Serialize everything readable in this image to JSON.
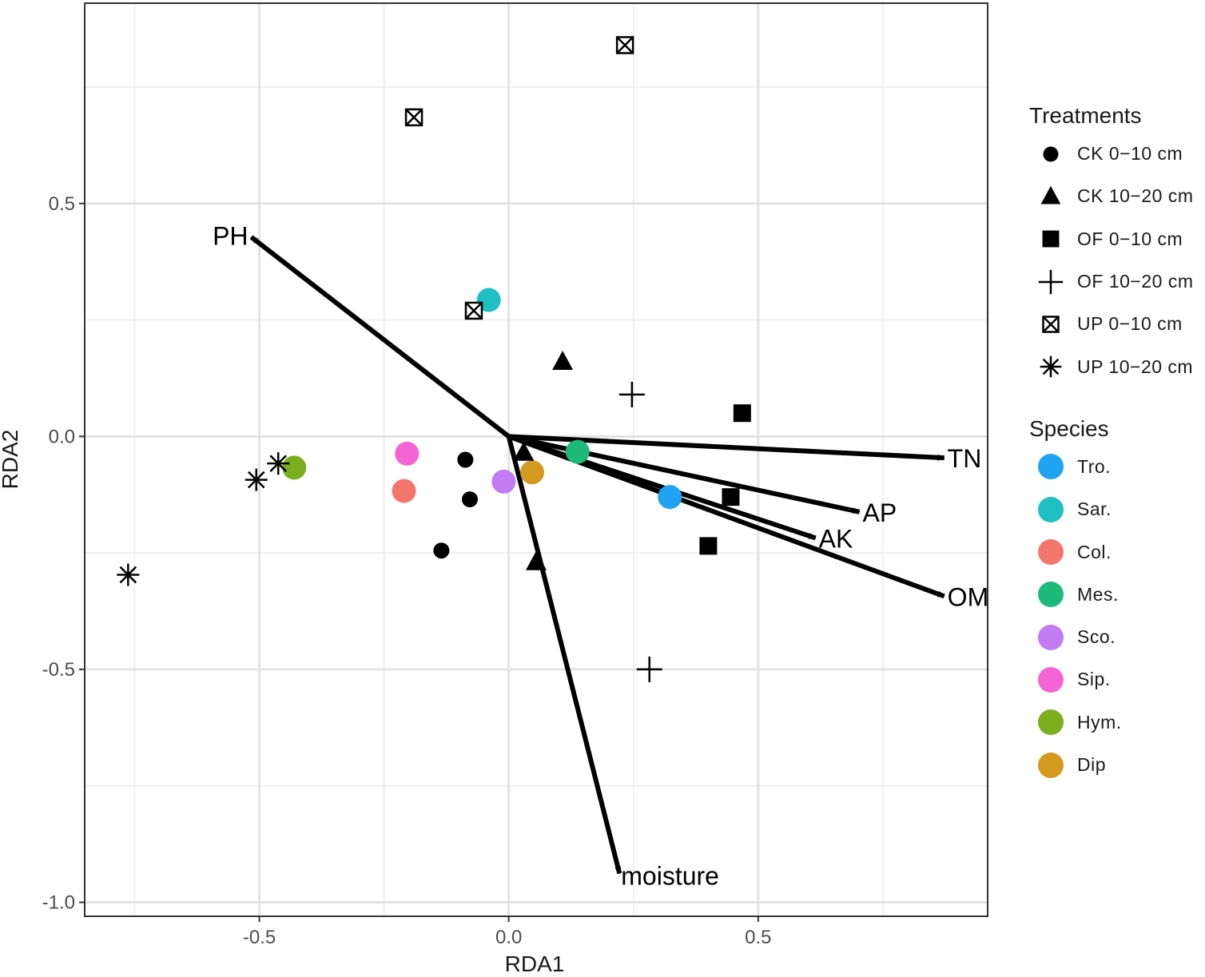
{
  "chart_data": {
    "type": "scatter",
    "xlabel": "RDA1",
    "ylabel": "RDA2",
    "xlim": [
      -0.85,
      0.96
    ],
    "ylim": [
      -1.03,
      0.93
    ],
    "x_ticks": [
      -0.5,
      0.0,
      0.5
    ],
    "y_ticks": [
      -1.0,
      -0.5,
      0.0,
      0.5
    ],
    "x_tick_labels": [
      "-0.5",
      "0.0",
      "0.5"
    ],
    "y_tick_labels": [
      "-1.0",
      "-0.5",
      "0.0",
      "0.5"
    ],
    "grid": true,
    "legend_placement": "right",
    "treatments_title": "Treatments",
    "species_title": "Species",
    "treatments": [
      {
        "name": "CK  0−10 cm",
        "shape": "circle"
      },
      {
        "name": "CK  10−20 cm",
        "shape": "triangle"
      },
      {
        "name": "OF  0−10  cm",
        "shape": "square"
      },
      {
        "name": "OF  10−20 cm",
        "shape": "plus"
      },
      {
        "name": "UP  0−10  cm",
        "shape": "boxcross"
      },
      {
        "name": "UP  10−20 cm",
        "shape": "asterisk"
      }
    ],
    "species": [
      {
        "name": "Tro.",
        "color": "#1FA3F2"
      },
      {
        "name": "Sar.",
        "color": "#1FBFC4"
      },
      {
        "name": "Col.",
        "color": "#F2766B"
      },
      {
        "name": "Mes.",
        "color": "#1FBA7A"
      },
      {
        "name": "Sco.",
        "color": "#C27BF2"
      },
      {
        "name": "Sip.",
        "color": "#F564D4"
      },
      {
        "name": "Hym.",
        "color": "#7AAE1F"
      },
      {
        "name": "Dip",
        "color": "#D49A1F"
      }
    ],
    "sample_points": [
      {
        "treatment": "CK  0−10 cm",
        "x": -0.087,
        "y": -0.05
      },
      {
        "treatment": "CK  0−10 cm",
        "x": -0.078,
        "y": -0.135
      },
      {
        "treatment": "CK  0−10 cm",
        "x": -0.135,
        "y": -0.245
      },
      {
        "treatment": "CK  10−20 cm",
        "x": 0.108,
        "y": 0.16
      },
      {
        "treatment": "CK  10−20 cm",
        "x": 0.03,
        "y": -0.035
      },
      {
        "treatment": "CK  10−20 cm",
        "x": 0.055,
        "y": -0.27
      },
      {
        "treatment": "OF  0−10  cm",
        "x": 0.468,
        "y": 0.05
      },
      {
        "treatment": "OF  0−10  cm",
        "x": 0.445,
        "y": -0.13
      },
      {
        "treatment": "OF  0−10  cm",
        "x": 0.4,
        "y": -0.235
      },
      {
        "treatment": "OF  10−20 cm",
        "x": 0.247,
        "y": 0.09
      },
      {
        "treatment": "OF  10−20 cm",
        "x": 0.282,
        "y": -0.5
      },
      {
        "treatment": "UP  0−10  cm",
        "x": 0.233,
        "y": 0.84
      },
      {
        "treatment": "UP  0−10  cm",
        "x": -0.19,
        "y": 0.685
      },
      {
        "treatment": "UP  0−10  cm",
        "x": -0.07,
        "y": 0.27
      },
      {
        "treatment": "UP  10−20 cm",
        "x": -0.763,
        "y": -0.297
      },
      {
        "treatment": "UP  10−20 cm",
        "x": -0.506,
        "y": -0.093
      },
      {
        "treatment": "UP  10−20 cm",
        "x": -0.462,
        "y": -0.058
      }
    ],
    "species_points": [
      {
        "species": "Tro.",
        "x": 0.323,
        "y": -0.13
      },
      {
        "species": "Sar.",
        "x": -0.04,
        "y": 0.293
      },
      {
        "species": "Col.",
        "x": -0.21,
        "y": -0.117
      },
      {
        "species": "Mes.",
        "x": 0.138,
        "y": -0.033
      },
      {
        "species": "Sco.",
        "x": -0.01,
        "y": -0.097
      },
      {
        "species": "Sip.",
        "x": -0.204,
        "y": -0.037
      },
      {
        "species": "Hym.",
        "x": -0.43,
        "y": -0.067
      },
      {
        "species": "Dip",
        "x": 0.047,
        "y": -0.077
      }
    ],
    "vectors": [
      {
        "label": "PH",
        "x": -0.516,
        "y": 0.428
      },
      {
        "label": "TN",
        "x": 0.873,
        "y": -0.046
      },
      {
        "label": "AP",
        "x": 0.703,
        "y": -0.162
      },
      {
        "label": "AK",
        "x": 0.615,
        "y": -0.218
      },
      {
        "label": "OM",
        "x": 0.873,
        "y": -0.343
      },
      {
        "label": "moisture",
        "x": 0.222,
        "y": -0.938
      }
    ]
  }
}
